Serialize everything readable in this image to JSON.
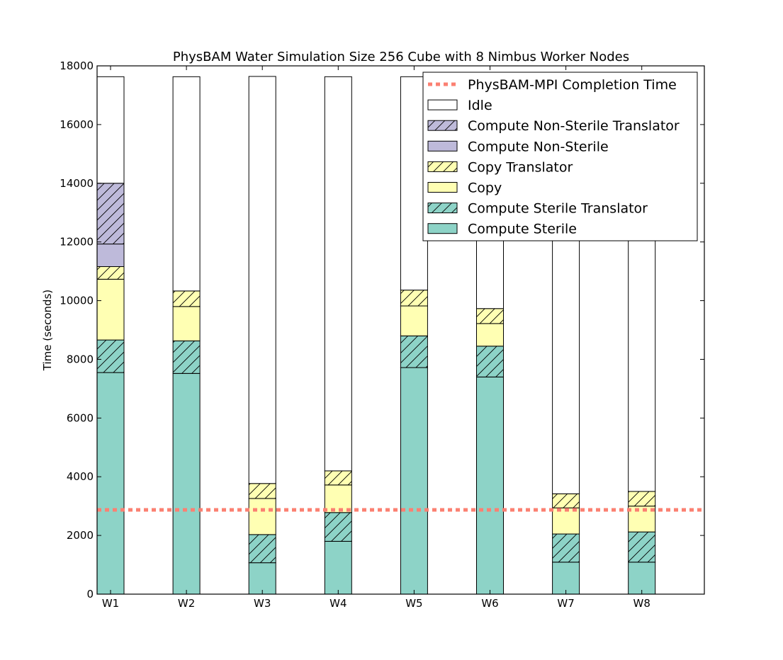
{
  "chart_data": {
    "type": "bar",
    "stacked": true,
    "title": "PhysBAM Water Simulation Size 256 Cube with 8 Nimbus Worker Nodes",
    "xlabel": "",
    "ylabel": "Time (seconds)",
    "ylim": [
      0,
      18000
    ],
    "yticks": [
      0,
      2000,
      4000,
      6000,
      8000,
      10000,
      12000,
      14000,
      16000,
      18000
    ],
    "grid": false,
    "legend_position": "top-right",
    "categories": [
      "W1",
      "W2",
      "W3",
      "W4",
      "W5",
      "W6",
      "W7",
      "W8"
    ],
    "series": [
      {
        "name": "Compute Sterile",
        "color": "#8dd3c7",
        "hatch": false,
        "values": [
          7550,
          7520,
          1070,
          1800,
          7720,
          7400,
          1090,
          1090
        ]
      },
      {
        "name": "Compute Sterile Translator",
        "color": "#8dd3c7",
        "hatch": true,
        "values": [
          1110,
          1110,
          960,
          980,
          1080,
          1050,
          960,
          1030
        ]
      },
      {
        "name": "Copy",
        "color": "#ffffb3",
        "hatch": false,
        "values": [
          2070,
          1170,
          1230,
          940,
          1020,
          770,
          890,
          880
        ]
      },
      {
        "name": "Copy Translator",
        "color": "#ffffb3",
        "hatch": true,
        "values": [
          430,
          530,
          510,
          480,
          540,
          510,
          480,
          500
        ]
      },
      {
        "name": "Compute Non-Sterile",
        "color": "#bebada",
        "hatch": false,
        "values": [
          770,
          0,
          0,
          0,
          0,
          0,
          0,
          0
        ]
      },
      {
        "name": "Compute Non-Sterile Translator",
        "color": "#bebada",
        "hatch": true,
        "values": [
          2070,
          0,
          0,
          0,
          0,
          0,
          0,
          0
        ]
      },
      {
        "name": "Idle",
        "color": "#ffffff",
        "hatch": false,
        "values": [
          3630,
          7300,
          13870,
          13430,
          7270,
          7900,
          14210,
          14130
        ]
      }
    ],
    "reference_line": {
      "name": "PhysBAM-MPI Completion Time",
      "value": 2870,
      "color": "#fb8072",
      "style": "dashed"
    },
    "legend_order": [
      "PhysBAM-MPI Completion Time",
      "Idle",
      "Compute Non-Sterile Translator",
      "Compute Non-Sterile",
      "Copy Translator",
      "Copy",
      "Compute Sterile Translator",
      "Compute Sterile"
    ]
  }
}
